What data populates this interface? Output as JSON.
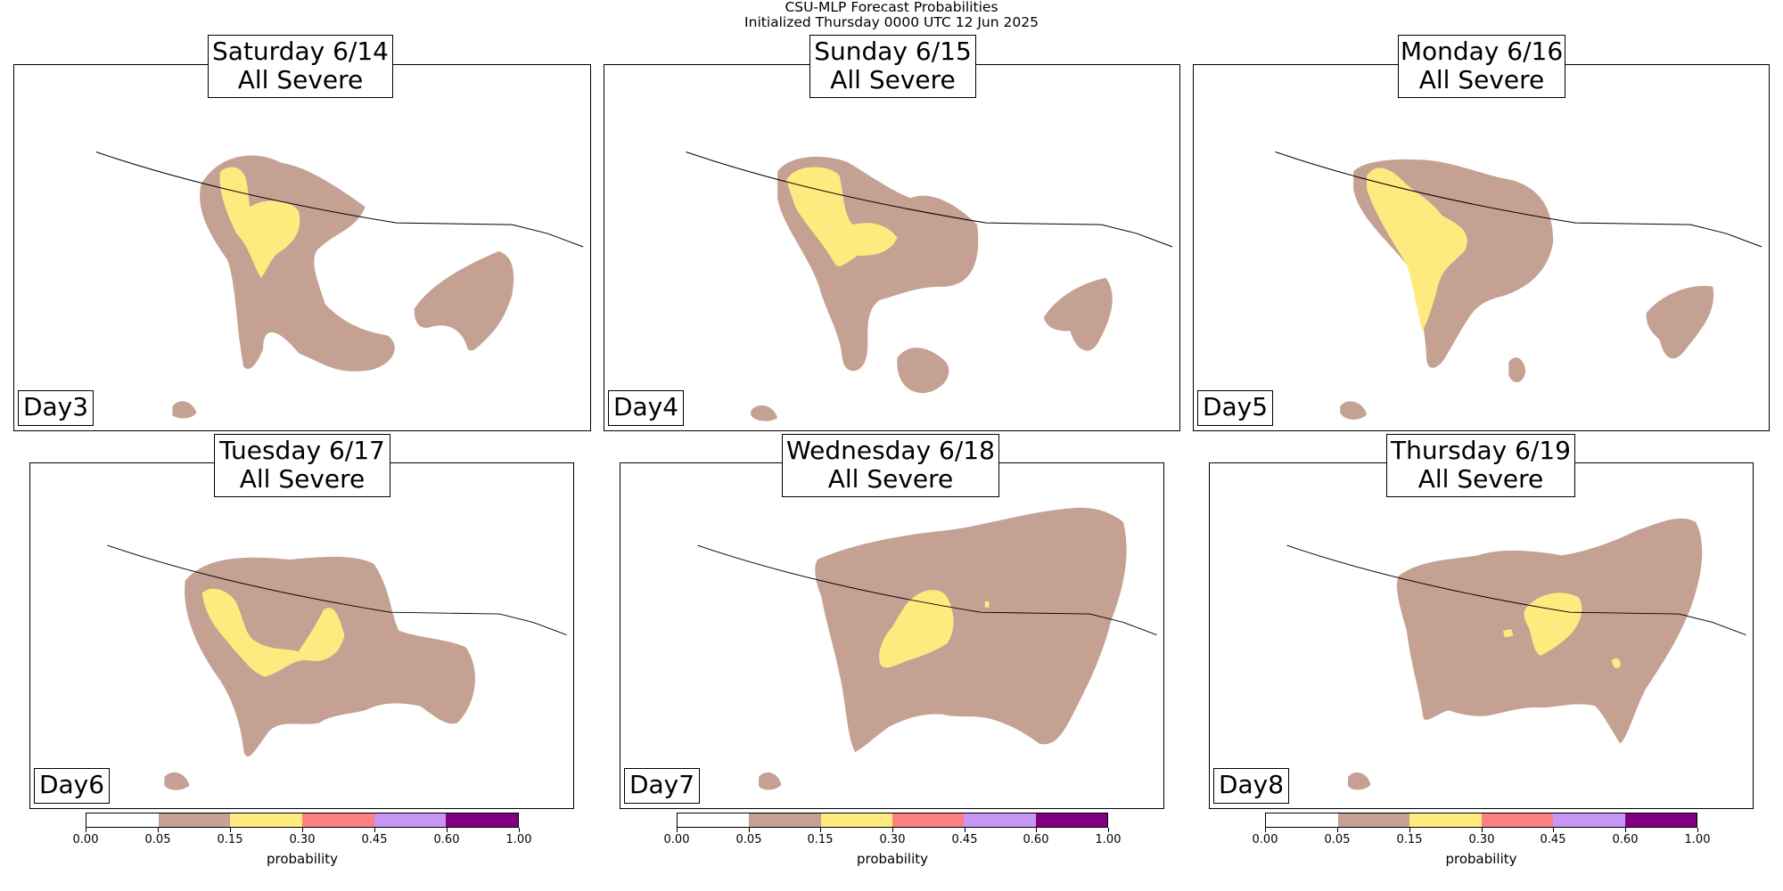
{
  "figure": {
    "title_line1": "CSU-MLP Forecast Probabilities",
    "title_line2": "Initialized Thursday 0000 UTC 12 Jun 2025"
  },
  "panels": [
    {
      "date": "Saturday 6/14",
      "hazard": "All Severe",
      "day_label": "Day3"
    },
    {
      "date": "Sunday 6/15",
      "hazard": "All Severe",
      "day_label": "Day4"
    },
    {
      "date": "Monday 6/16",
      "hazard": "All Severe",
      "day_label": "Day5"
    },
    {
      "date": "Tuesday 6/17",
      "hazard": "All Severe",
      "day_label": "Day6"
    },
    {
      "date": "Wednesday 6/18",
      "hazard": "All Severe",
      "day_label": "Day7"
    },
    {
      "date": "Thursday 6/19",
      "hazard": "All Severe",
      "day_label": "Day8"
    }
  ],
  "colorbar": {
    "label": "probability",
    "ticks": [
      "0.00",
      "0.05",
      "0.15",
      "0.30",
      "0.45",
      "0.60",
      "1.00"
    ],
    "bins": [
      {
        "from": 0.0,
        "to": 0.05,
        "color": "#ffffff"
      },
      {
        "from": 0.05,
        "to": 0.15,
        "color": "#c4a192"
      },
      {
        "from": 0.15,
        "to": 0.3,
        "color": "#ffea80"
      },
      {
        "from": 0.3,
        "to": 0.45,
        "color": "#fe8080"
      },
      {
        "from": 0.45,
        "to": 0.6,
        "color": "#c896f7"
      },
      {
        "from": 0.6,
        "to": 1.0,
        "color": "#800080"
      }
    ]
  },
  "chart_data": {
    "type": "heatmap",
    "title": "CSU-MLP Forecast Probabilities",
    "subtitle": "Initialized Thursday 0000 UTC 12 Jun 2025",
    "colorbar_label": "probability",
    "levels": [
      0.0,
      0.05,
      0.15,
      0.3,
      0.45,
      0.6,
      1.0
    ],
    "level_colors": [
      "#ffffff",
      "#c4a192",
      "#ffea80",
      "#fe8080",
      "#c896f7",
      "#800080"
    ],
    "panels": [
      {
        "title": "Saturday 6/14 All Severe",
        "day": "Day3",
        "max_level": 0.15
      },
      {
        "title": "Sunday 6/15 All Severe",
        "day": "Day4",
        "max_level": 0.15
      },
      {
        "title": "Monday 6/16 All Severe",
        "day": "Day5",
        "max_level": 0.15
      },
      {
        "title": "Tuesday 6/17 All Severe",
        "day": "Day6",
        "max_level": 0.15
      },
      {
        "title": "Wednesday 6/18 All Severe",
        "day": "Day7",
        "max_level": 0.15
      },
      {
        "title": "Thursday 6/19 All Severe",
        "day": "Day8",
        "max_level": 0.15
      }
    ]
  },
  "colors": {
    "low": "#c4a192",
    "mid": "#ffea80"
  }
}
